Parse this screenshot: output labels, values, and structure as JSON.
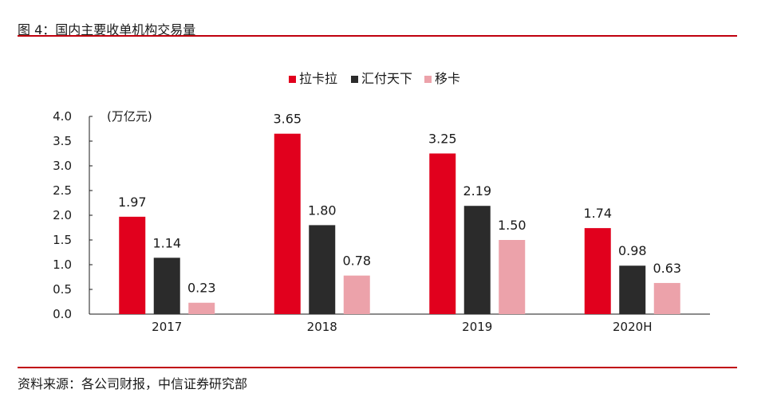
{
  "figure": {
    "title": "图 4：国内主要收单机构交易量",
    "source": "资料来源：各公司财报，中信证券研究部"
  },
  "chart_data": {
    "type": "bar",
    "categories": [
      "2017",
      "2018",
      "2019",
      "2020H"
    ],
    "series": [
      {
        "name": "拉卡拉",
        "color": "#e1001d",
        "values": [
          1.97,
          3.65,
          3.25,
          1.74
        ]
      },
      {
        "name": "汇付天下",
        "color": "#2b2b2b",
        "values": [
          1.14,
          1.8,
          2.19,
          0.98
        ]
      },
      {
        "name": "移卡",
        "color": "#eca2aa",
        "values": [
          0.23,
          0.78,
          1.5,
          0.63
        ]
      }
    ],
    "data_labels": [
      [
        "1.97",
        "3.65",
        "3.25",
        "1.74"
      ],
      [
        "1.14",
        "1.80",
        "2.19",
        "0.98"
      ],
      [
        "0.23",
        "0.78",
        "1.50",
        "0.63"
      ]
    ],
    "unit_label": "(万亿元)",
    "yticks": [
      "0.0",
      "0.5",
      "1.0",
      "1.5",
      "2.0",
      "2.5",
      "3.0",
      "3.5",
      "4.0"
    ],
    "ylim": [
      0,
      4.0
    ],
    "legend_position": "top-center",
    "grid": false
  }
}
